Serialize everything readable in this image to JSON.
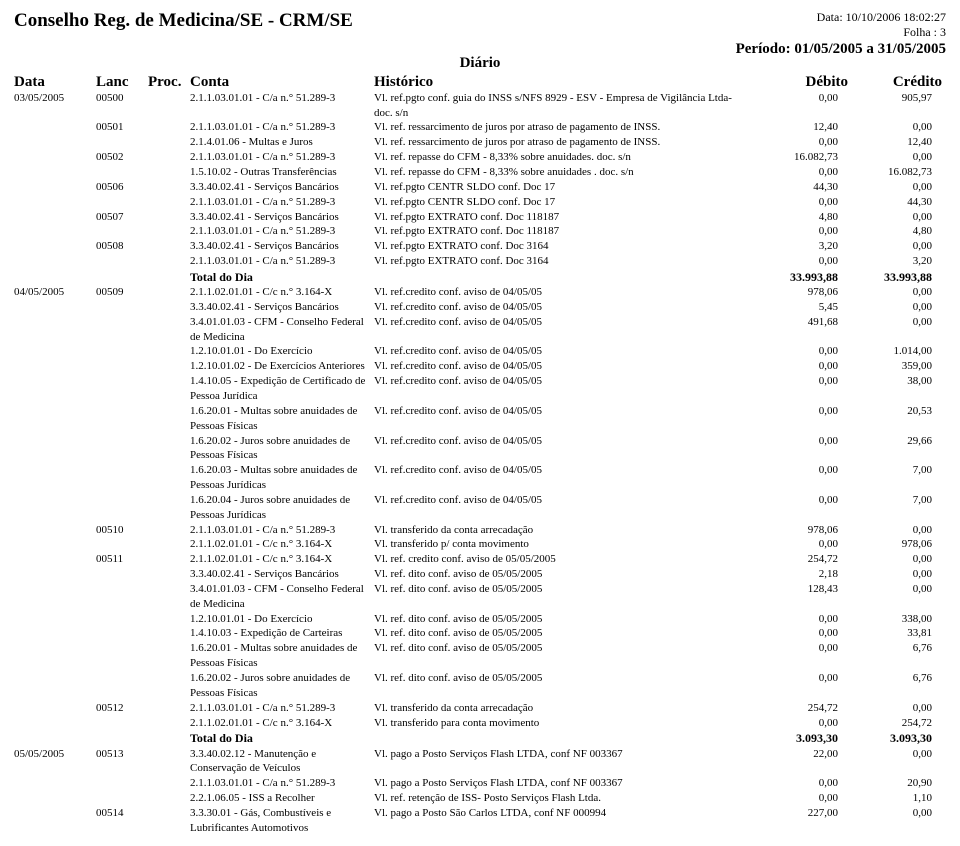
{
  "header": {
    "org": "Conselho Reg. de Medicina/SE - CRM/SE",
    "datetime": "Data: 10/10/2006 18:02:27",
    "page": "Folha : 3",
    "period": "Período: 01/05/2005 a 31/05/2005",
    "subtitle": "Diário"
  },
  "columns": {
    "data": "Data",
    "lanc": "Lanc",
    "proc": "Proc.",
    "conta": "Conta",
    "historico": "Histórico",
    "debito": "Débito",
    "credito": "Crédito"
  },
  "rows": [
    {
      "data": "03/05/2005",
      "lanc": "00500",
      "proc": "",
      "conta": "2.1.1.03.01.01 - C/a n.° 51.289-3",
      "hist": "Vl. ref.pgto conf. guia do INSS s/NFS 8929 - ESV - Empresa de Vigilância Ltda- doc. s/n",
      "deb": "0,00",
      "cred": "905,97"
    },
    {
      "data": "",
      "lanc": "00501",
      "proc": "",
      "conta": "2.1.1.03.01.01 - C/a n.° 51.289-3",
      "hist": "Vl. ref. ressarcimento de juros por atraso de pagamento de INSS.",
      "deb": "12,40",
      "cred": "0,00"
    },
    {
      "data": "",
      "lanc": "",
      "proc": "",
      "conta": "2.1.4.01.06 - Multas e Juros",
      "hist": "Vl. ref. ressarcimento de juros por atraso de pagamento de INSS.",
      "deb": "0,00",
      "cred": "12,40"
    },
    {
      "data": "",
      "lanc": "00502",
      "proc": "",
      "conta": "2.1.1.03.01.01 - C/a n.° 51.289-3",
      "hist": "Vl. ref. repasse do CFM - 8,33% sobre anuidades. doc. s/n",
      "deb": "16.082,73",
      "cred": "0,00"
    },
    {
      "data": "",
      "lanc": "",
      "proc": "",
      "conta": "1.5.10.02 - Outras Transferências",
      "hist": "Vl. ref. repasse do CFM - 8,33% sobre anuidades . doc. s/n",
      "deb": "0,00",
      "cred": "16.082,73"
    },
    {
      "data": "",
      "lanc": "00506",
      "proc": "",
      "conta": "3.3.40.02.41 - Serviços Bancários",
      "hist": "Vl. ref.pgto CENTR SLDO conf. Doc 17",
      "deb": "44,30",
      "cred": "0,00"
    },
    {
      "data": "",
      "lanc": "",
      "proc": "",
      "conta": "2.1.1.03.01.01 - C/a n.° 51.289-3",
      "hist": "Vl. ref.pgto CENTR SLDO conf. Doc 17",
      "deb": "0,00",
      "cred": "44,30"
    },
    {
      "data": "",
      "lanc": "00507",
      "proc": "",
      "conta": "3.3.40.02.41 - Serviços Bancários",
      "hist": "Vl. ref.pgto EXTRATO conf. Doc 118187",
      "deb": "4,80",
      "cred": "0,00"
    },
    {
      "data": "",
      "lanc": "",
      "proc": "",
      "conta": "2.1.1.03.01.01 - C/a n.° 51.289-3",
      "hist": "Vl. ref.pgto EXTRATO conf. Doc 118187",
      "deb": "0,00",
      "cred": "4,80"
    },
    {
      "data": "",
      "lanc": "00508",
      "proc": "",
      "conta": "3.3.40.02.41 - Serviços Bancários",
      "hist": "Vl. ref.pgto EXTRATO conf. Doc 3164",
      "deb": "3,20",
      "cred": "0,00"
    },
    {
      "data": "",
      "lanc": "",
      "proc": "",
      "conta": "2.1.1.03.01.01 - C/a n.° 51.289-3",
      "hist": "Vl. ref.pgto EXTRATO conf. Doc 3164",
      "deb": "0,00",
      "cred": "3,20"
    },
    {
      "data": "",
      "lanc": "",
      "proc": "",
      "conta": "Total do Dia",
      "hist": "",
      "deb": "33.993,88",
      "cred": "33.993,88",
      "total": true
    },
    {
      "data": "04/05/2005",
      "lanc": "00509",
      "proc": "",
      "conta": "2.1.1.02.01.01 - C/c n.° 3.164-X",
      "hist": "Vl. ref.credito conf. aviso de 04/05/05",
      "deb": "978,06",
      "cred": "0,00"
    },
    {
      "data": "",
      "lanc": "",
      "proc": "",
      "conta": "3.3.40.02.41 - Serviços Bancários",
      "hist": "Vl. ref.credito conf. aviso de 04/05/05",
      "deb": "5,45",
      "cred": "0,00"
    },
    {
      "data": "",
      "lanc": "",
      "proc": "",
      "conta": "3.4.01.01.03 - CFM - Conselho Federal de Medicina",
      "hist": "Vl. ref.credito conf. aviso de 04/05/05",
      "deb": "491,68",
      "cred": "0,00"
    },
    {
      "data": "",
      "lanc": "",
      "proc": "",
      "conta": "1.2.10.01.01 - Do Exercício",
      "hist": "Vl. ref.credito conf. aviso de 04/05/05",
      "deb": "0,00",
      "cred": "1.014,00"
    },
    {
      "data": "",
      "lanc": "",
      "proc": "",
      "conta": "1.2.10.01.02 - De Exercícios Anteriores",
      "hist": "Vl. ref.credito conf. aviso de 04/05/05",
      "deb": "0,00",
      "cred": "359,00"
    },
    {
      "data": "",
      "lanc": "",
      "proc": "",
      "conta": "1.4.10.05 - Expedição de Certificado de Pessoa Jurídica",
      "hist": "Vl. ref.credito conf. aviso de 04/05/05",
      "deb": "0,00",
      "cred": "38,00"
    },
    {
      "data": "",
      "lanc": "",
      "proc": "",
      "conta": "1.6.20.01 - Multas sobre anuidades de Pessoas Físicas",
      "hist": "Vl. ref.credito conf. aviso de 04/05/05",
      "deb": "0,00",
      "cred": "20,53"
    },
    {
      "data": "",
      "lanc": "",
      "proc": "",
      "conta": "1.6.20.02 - Juros sobre anuidades de Pessoas Físicas",
      "hist": "Vl. ref.credito conf. aviso de 04/05/05",
      "deb": "0,00",
      "cred": "29,66"
    },
    {
      "data": "",
      "lanc": "",
      "proc": "",
      "conta": "1.6.20.03 - Multas sobre anuidades de Pessoas Jurídicas",
      "hist": "Vl. ref.credito conf. aviso de 04/05/05",
      "deb": "0,00",
      "cred": "7,00"
    },
    {
      "data": "",
      "lanc": "",
      "proc": "",
      "conta": "1.6.20.04 - Juros sobre anuidades de Pessoas Jurídicas",
      "hist": "Vl. ref.credito conf. aviso de 04/05/05",
      "deb": "0,00",
      "cred": "7,00"
    },
    {
      "data": "",
      "lanc": "00510",
      "proc": "",
      "conta": "2.1.1.03.01.01 - C/a n.° 51.289-3",
      "hist": "Vl. transferido da conta arrecadação",
      "deb": "978,06",
      "cred": "0,00"
    },
    {
      "data": "",
      "lanc": "",
      "proc": "",
      "conta": "2.1.1.02.01.01 - C/c n.° 3.164-X",
      "hist": "Vl. transferido p/ conta movimento",
      "deb": "0,00",
      "cred": "978,06"
    },
    {
      "data": "",
      "lanc": "00511",
      "proc": "",
      "conta": "2.1.1.02.01.01 - C/c n.° 3.164-X",
      "hist": "Vl. ref. credito conf. aviso de 05/05/2005",
      "deb": "254,72",
      "cred": "0,00"
    },
    {
      "data": "",
      "lanc": "",
      "proc": "",
      "conta": "3.3.40.02.41 - Serviços Bancários",
      "hist": "Vl. ref. dito conf. aviso de 05/05/2005",
      "deb": "2,18",
      "cred": "0,00"
    },
    {
      "data": "",
      "lanc": "",
      "proc": "",
      "conta": "3.4.01.01.03 - CFM - Conselho Federal de Medicina",
      "hist": "Vl. ref. dito conf. aviso de 05/05/2005",
      "deb": "128,43",
      "cred": "0,00"
    },
    {
      "data": "",
      "lanc": "",
      "proc": "",
      "conta": "1.2.10.01.01 - Do Exercício",
      "hist": "Vl. ref. dito conf. aviso de 05/05/2005",
      "deb": "0,00",
      "cred": "338,00"
    },
    {
      "data": "",
      "lanc": "",
      "proc": "",
      "conta": "1.4.10.03 - Expedição de Carteiras",
      "hist": "Vl. ref. dito conf. aviso de 05/05/2005",
      "deb": "0,00",
      "cred": "33,81"
    },
    {
      "data": "",
      "lanc": "",
      "proc": "",
      "conta": "1.6.20.01 - Multas sobre anuidades de Pessoas Físicas",
      "hist": "Vl. ref. dito conf. aviso de 05/05/2005",
      "deb": "0,00",
      "cred": "6,76"
    },
    {
      "data": "",
      "lanc": "",
      "proc": "",
      "conta": "1.6.20.02 - Juros sobre anuidades de Pessoas Físicas",
      "hist": "Vl. ref. dito conf. aviso de 05/05/2005",
      "deb": "0,00",
      "cred": "6,76"
    },
    {
      "data": "",
      "lanc": "00512",
      "proc": "",
      "conta": "2.1.1.03.01.01 - C/a n.° 51.289-3",
      "hist": "Vl. transferido da conta arrecadação",
      "deb": "254,72",
      "cred": "0,00"
    },
    {
      "data": "",
      "lanc": "",
      "proc": "",
      "conta": "2.1.1.02.01.01 - C/c n.° 3.164-X",
      "hist": "Vl. transferido para conta movimento",
      "deb": "0,00",
      "cred": "254,72"
    },
    {
      "data": "",
      "lanc": "",
      "proc": "",
      "conta": "Total do Dia",
      "hist": "",
      "deb": "3.093,30",
      "cred": "3.093,30",
      "total": true
    },
    {
      "data": "05/05/2005",
      "lanc": "00513",
      "proc": "",
      "conta": "3.3.40.02.12 - Manutenção e Conservação de Veículos",
      "hist": "Vl. pago a Posto Serviços Flash LTDA, conf NF 003367",
      "deb": "22,00",
      "cred": "0,00"
    },
    {
      "data": "",
      "lanc": "",
      "proc": "",
      "conta": "2.1.1.03.01.01 - C/a n.° 51.289-3",
      "hist": "Vl. pago a Posto Serviços Flash LTDA, conf NF 003367",
      "deb": "0,00",
      "cred": "20,90"
    },
    {
      "data": "",
      "lanc": "",
      "proc": "",
      "conta": "2.2.1.06.05 - ISS a Recolher",
      "hist": "Vl. ref. retenção de ISS- Posto Serviços Flash Ltda.",
      "deb": "0,00",
      "cred": "1,10"
    },
    {
      "data": "",
      "lanc": "00514",
      "proc": "",
      "conta": "3.3.30.01 - Gás, Combustíveis e Lubrificantes Automotivos",
      "hist": "Vl. pago a Posto São Carlos LTDA, conf NF 000994",
      "deb": "227,00",
      "cred": "0,00"
    }
  ]
}
